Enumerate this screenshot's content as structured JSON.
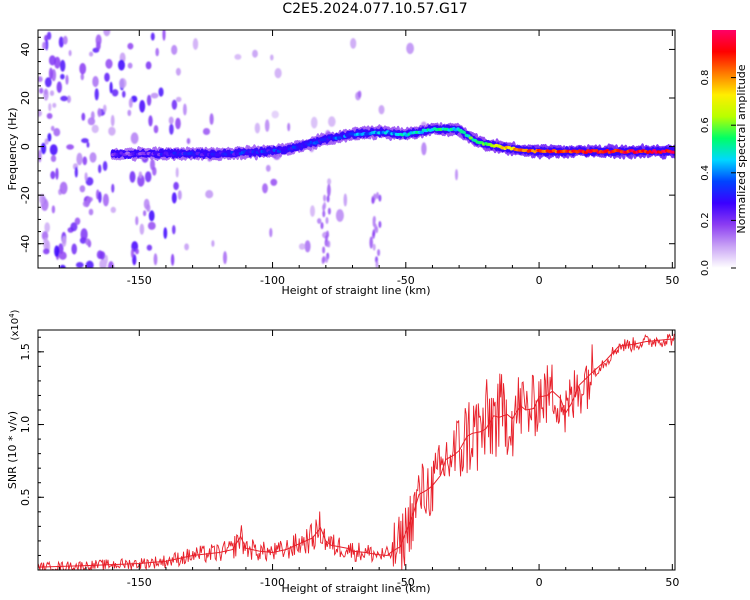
{
  "title": "C2E5.2024.077.10.57.G17",
  "colors": {
    "snr_line": "#e8202a",
    "colormap": [
      "#ffffff",
      "#c9a3f5",
      "#8c3df2",
      "#3a00ff",
      "#0044ff",
      "#00d8ff",
      "#00ff66",
      "#b8ff00",
      "#ffee00",
      "#ff7a00",
      "#ff0000",
      "#ff0066"
    ]
  },
  "chart_data": [
    {
      "type": "heatmap",
      "title": "",
      "xlabel": "Height of straight line (km)",
      "ylabel": "Frequency (Hz)",
      "xlim": [
        -188,
        51
      ],
      "ylim": [
        -50,
        48
      ],
      "xticks": [
        -150,
        -100,
        -50,
        0,
        50
      ],
      "yticks": [
        -40,
        -20,
        0,
        20,
        40
      ],
      "tick_labels_x": [
        "-150",
        "-100",
        "-50",
        "0",
        "50"
      ],
      "tick_labels_y": [
        "-40",
        "-20",
        "0",
        "20",
        "40"
      ],
      "colorbar": {
        "label": "Normalized spectral amplitude",
        "range": [
          0,
          1
        ],
        "ticks": [
          "0.0",
          "0.2",
          "0.4",
          "0.6",
          "0.8"
        ]
      },
      "ridge": {
        "x": [
          -160,
          -140,
          -120,
          -100,
          -90,
          -80,
          -70,
          -60,
          -50,
          -40,
          -30,
          -25,
          -20,
          -10,
          0,
          25,
          51
        ],
        "frequency": [
          -3,
          -3,
          -3,
          -2,
          0,
          3,
          5,
          6,
          5,
          7,
          7,
          3,
          1,
          -1,
          -2,
          -2,
          -2
        ],
        "amplitude": [
          0.2,
          0.25,
          0.3,
          0.3,
          0.3,
          0.32,
          0.38,
          0.4,
          0.45,
          0.5,
          0.5,
          0.55,
          0.6,
          0.75,
          0.85,
          0.9,
          0.95
        ]
      }
    },
    {
      "type": "line",
      "title": "",
      "xlabel": "Height of straight line (km)",
      "ylabel": "SNR (10 * v/v)",
      "y_multiplier": "(x10^4)",
      "xlim": [
        -188,
        51
      ],
      "ylim": [
        0,
        16500
      ],
      "xticks": [
        -150,
        -100,
        -50,
        0,
        50
      ],
      "yticks": [
        5000,
        10000,
        15000
      ],
      "tick_labels_x": [
        "-150",
        "-100",
        "-50",
        "0",
        "50"
      ],
      "tick_labels_y": [
        "0.5",
        "1.0",
        "1.5"
      ],
      "series": [
        {
          "name": "",
          "x": [
            -188,
            -170,
            -150,
            -140,
            -135,
            -130,
            -125,
            -120,
            -115,
            -112,
            -110,
            -105,
            -100,
            -95,
            -90,
            -85,
            -82,
            -80,
            -78,
            -75,
            -72,
            -70,
            -65,
            -62,
            -60,
            -57,
            -55,
            -52,
            -50,
            -47,
            -45,
            -42,
            -40,
            -37,
            -35,
            -32,
            -30,
            -27,
            -25,
            -22,
            -20,
            -17,
            -15,
            -12,
            -10,
            -7,
            -5,
            -2,
            0,
            3,
            5,
            8,
            10,
            12,
            15,
            20,
            25,
            30,
            35,
            40,
            45,
            51
          ],
          "y": [
            200,
            300,
            450,
            600,
            800,
            1000,
            1100,
            1200,
            1400,
            2300,
            1500,
            1300,
            1200,
            1400,
            1800,
            2200,
            2900,
            2000,
            1700,
            1600,
            1500,
            1300,
            1200,
            1100,
            1050,
            1000,
            1300,
            1600,
            2600,
            4000,
            5200,
            5500,
            5800,
            6500,
            7600,
            7900,
            8200,
            9200,
            9400,
            9500,
            9700,
            10600,
            10500,
            10700,
            10400,
            11300,
            11000,
            11100,
            11900,
            12000,
            12300,
            11800,
            10800,
            11400,
            12700,
            13600,
            14400,
            15400,
            15500,
            15700,
            15800,
            15900
          ]
        }
      ]
    }
  ]
}
